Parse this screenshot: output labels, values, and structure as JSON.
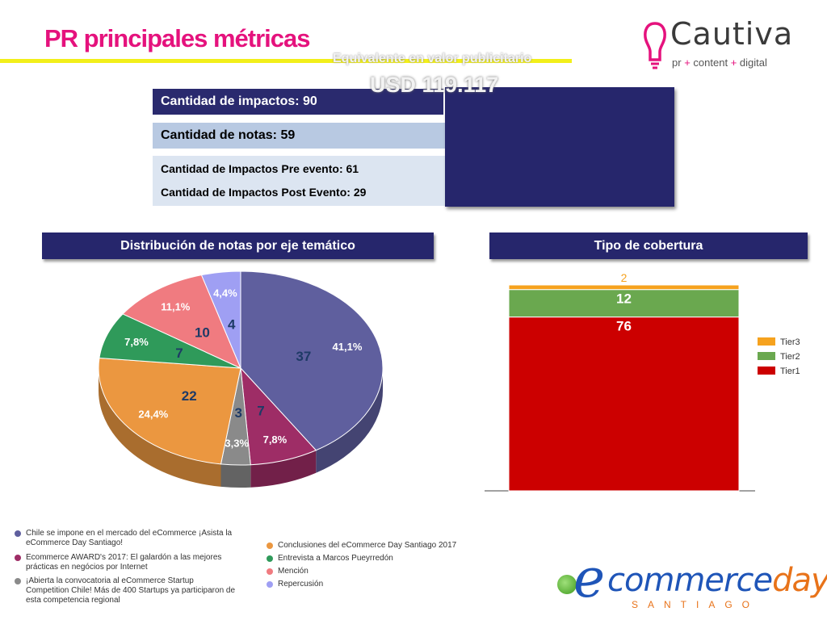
{
  "header": {
    "title": "PR principales métricas"
  },
  "brand": {
    "logo_name": "Cautiva",
    "tagline_parts": [
      "pr",
      "+",
      "content",
      "+",
      "digital"
    ]
  },
  "metrics": {
    "impactos": "Cantidad de impactos: 90",
    "notas": "Cantidad de notas: 59",
    "pre_evento": "Cantidad de Impactos Pre evento: 61",
    "post_evento": "Cantidad de Impactos Post Evento: 29",
    "valor_caption": "Equivalente en valor publicitario",
    "valor_amount": "USD 119.117"
  },
  "sections": {
    "pie_title": "Distribución de notas por eje temático",
    "bar_title": "Tipo de cobertura"
  },
  "colors": {
    "accent": "#e5127d",
    "panel": "#26266c",
    "underline": "#f2ef1a"
  },
  "chart_data": [
    {
      "type": "pie",
      "title": "Distribución de notas por eje temático",
      "series": [
        {
          "name": "Chile se impone en el mercado del eCommerce ¡Asista la eCommerce Day Santiago!",
          "value": 37,
          "percent": "41,1%",
          "color": "#5f5f9e"
        },
        {
          "name": "Ecommerce AWARD's 2017: El galardón a las mejores prácticas en negócios por Internet",
          "value": 7,
          "percent": "7,8%",
          "color": "#9e2d66"
        },
        {
          "name": "¡Abierta la convocatoria al eCommerce Startup Competition Chile! Más de 400 Startups ya participaron de esta competencia regional",
          "value": 3,
          "percent": "3,3%",
          "color": "#8a8a8a"
        },
        {
          "name": "Conclusiones del eCommerce Day Santiago 2017",
          "value": 22,
          "percent": "24,4%",
          "color": "#eb9740"
        },
        {
          "name": "Entrevista a Marcos Pueyrredón",
          "value": 7,
          "percent": "7,8%",
          "color": "#2f9a5a"
        },
        {
          "name": "Mención",
          "value": 10,
          "percent": "11,1%",
          "color": "#f07b80"
        },
        {
          "name": "Repercusión",
          "value": 4,
          "percent": "4,4%",
          "color": "#9f9ff3"
        }
      ],
      "legend_left": [
        "Chile se impone en el mercado del eCommerce ¡Asista la eCommerce Day Santiago!",
        "Ecommerce AWARD's 2017: El galardón a las mejores prácticas en negócios por Internet",
        "¡Abierta la convocatoria al eCommerce Startup Competition Chile! Más de 400 Startups ya participaron de esta competencia regional"
      ],
      "legend_right": [
        "Conclusiones del eCommerce Day Santiago 2017",
        "Entrevista a Marcos Pueyrredón",
        "Mención",
        "Repercusión"
      ]
    },
    {
      "type": "bar",
      "title": "Tipo de cobertura",
      "stacked": true,
      "categories": [
        ""
      ],
      "series": [
        {
          "name": "Tier1",
          "values": [
            76
          ],
          "color": "#cc0000"
        },
        {
          "name": "Tier2",
          "values": [
            12
          ],
          "color": "#6aa84f"
        },
        {
          "name": "Tier3",
          "values": [
            2
          ],
          "color": "#f6a21e"
        }
      ],
      "legend_placement": "right",
      "legend_order": [
        "Tier3",
        "Tier2",
        "Tier1"
      ]
    }
  ],
  "footer": {
    "event_e": "e",
    "event_commerce": "commerce",
    "event_day": "day",
    "event_city": "SANTIAGO"
  }
}
